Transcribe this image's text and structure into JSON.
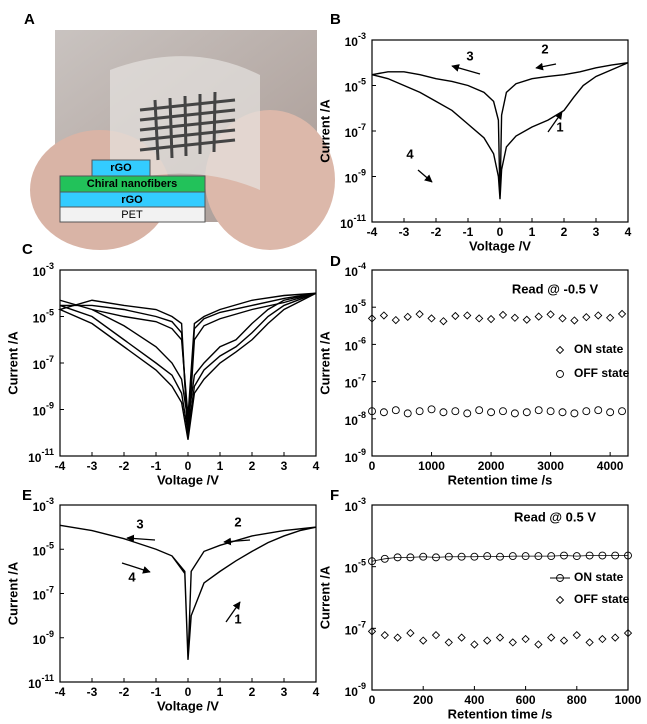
{
  "panel_a": {
    "label": "A",
    "layers": [
      "rGO",
      "Chiral nanofibers",
      "rGO",
      "PET"
    ]
  },
  "chart_data": [
    {
      "type": "line",
      "panel": "B",
      "xlabel": "Voltage /V",
      "ylabel": "Current /A",
      "log_y": true,
      "xlim": [
        -4,
        4
      ],
      "xticks": [
        -4,
        -3,
        -2,
        -1,
        0,
        1,
        2,
        3,
        4
      ],
      "ylim": [
        1e-11,
        0.001
      ],
      "yticks": [
        {
          "value": 0.001,
          "label": "10",
          "sup": "-3"
        },
        {
          "value": 1e-05,
          "label": "10",
          "sup": "-5"
        },
        {
          "value": 1e-07,
          "label": "10",
          "sup": "-7"
        },
        {
          "value": 1e-09,
          "label": "10",
          "sup": "-9"
        },
        {
          "value": 1e-11,
          "label": "10",
          "sup": "-11"
        }
      ],
      "annotations": [
        "3",
        "2",
        "4",
        "1"
      ],
      "x": [
        0,
        0.05,
        0.2,
        0.5,
        1,
        1.5,
        2,
        2.3,
        2.6,
        3,
        3.5,
        4,
        3.5,
        3,
        2.5,
        2,
        1.5,
        1,
        0.5,
        0.2,
        0.05,
        0,
        -0.05,
        -0.2,
        -0.5,
        -1,
        -1.5,
        -2,
        -2.5,
        -3,
        -3.5,
        -4,
        -3.5,
        -3,
        -2.5,
        -2,
        -1.5,
        -1,
        -0.5,
        -0.2,
        -0.05,
        0
      ],
      "series": [
        {
          "color": "#000000",
          "values": [
            1e-10,
            2e-09,
            2e-08,
            6e-08,
            1.5e-07,
            3e-07,
            8e-07,
            3e-06,
            1e-05,
            2.5e-05,
            5e-05,
            0.0001,
            8e-05,
            6e-05,
            4e-05,
            3e-05,
            2.5e-05,
            2e-05,
            1.2e-05,
            5e-06,
            5e-07,
            1e-10,
            3e-07,
            2e-06,
            5e-06,
            1e-05,
            1.5e-05,
            2e-05,
            3e-05,
            4e-05,
            4e-05,
            3e-05,
            2e-05,
            1e-05,
            5e-06,
            2e-06,
            8e-07,
            2e-07,
            5e-08,
            1e-08,
            1e-09,
            1e-10
          ]
        }
      ]
    },
    {
      "type": "line",
      "panel": "C",
      "xlabel": "Voltage /V",
      "ylabel": "Current /A",
      "log_y": true,
      "xlim": [
        -4,
        4
      ],
      "xticks": [
        -4,
        -3,
        -2,
        -1,
        0,
        1,
        2,
        3,
        4
      ],
      "ylim": [
        1e-11,
        0.001
      ],
      "yticks": [
        {
          "value": 0.001,
          "label": "10",
          "sup": "-3"
        },
        {
          "value": 1e-05,
          "label": "10",
          "sup": "-5"
        },
        {
          "value": 1e-07,
          "label": "10",
          "sup": "-7"
        },
        {
          "value": 1e-09,
          "label": "10",
          "sup": "-9"
        },
        {
          "value": 1e-11,
          "label": "10",
          "sup": "-11"
        }
      ],
      "x": [
        0,
        0.2,
        0.5,
        1,
        1.5,
        2,
        2.5,
        3,
        4,
        3,
        2,
        1,
        0.5,
        0.2,
        0,
        -0.2,
        -0.5,
        -1,
        -2,
        -3,
        -4,
        -3,
        -2,
        -1,
        -0.5,
        -0.2,
        0
      ],
      "series": [
        {
          "color": "#000000",
          "values": [
            1e-10,
            1e-08,
            5e-08,
            2e-07,
            5e-07,
            2e-06,
            1e-05,
            3e-05,
            0.0001,
            6e-05,
            3e-05,
            1.5e-05,
            8e-06,
            3e-06,
            1e-10,
            2e-06,
            6e-06,
            1e-05,
            2e-05,
            3e-05,
            3e-05,
            1e-05,
            1e-06,
            1e-07,
            3e-08,
            5e-09,
            1e-10
          ]
        },
        {
          "color": "#000000",
          "values": [
            3e-10,
            3e-08,
            1e-07,
            5e-07,
            1e-06,
            5e-06,
            2e-05,
            5e-05,
            0.0001,
            8e-05,
            5e-05,
            2e-05,
            1e-05,
            5e-06,
            5e-10,
            1e-06,
            3e-06,
            6e-06,
            1e-05,
            2e-05,
            5e-05,
            2e-05,
            4e-06,
            5e-07,
            1e-07,
            2e-08,
            3e-10
          ]
        },
        {
          "color": "#000000",
          "values": [
            5e-11,
            5e-09,
            2e-08,
            1e-07,
            3e-07,
            1e-06,
            5e-06,
            2e-05,
            0.0001,
            4e-05,
            2e-05,
            8e-06,
            4e-06,
            1e-06,
            5e-11,
            5e-06,
            1e-05,
            2e-05,
            3e-05,
            5e-05,
            2e-05,
            5e-06,
            5e-07,
            5e-08,
            1e-08,
            2e-09,
            5e-11
          ]
        }
      ]
    },
    {
      "type": "scatter",
      "panel": "D",
      "xlabel": "Retention time /s",
      "ylabel": "Current /A",
      "log_y": true,
      "xlim": [
        0,
        4300
      ],
      "xticks": [
        0,
        1000,
        2000,
        3000,
        4000
      ],
      "ylim": [
        1e-09,
        0.0001
      ],
      "yticks": [
        {
          "value": 0.0001,
          "label": "10",
          "sup": "-4"
        },
        {
          "value": 1e-05,
          "label": "10",
          "sup": "-5"
        },
        {
          "value": 1e-06,
          "label": "10",
          "sup": "-6"
        },
        {
          "value": 1e-07,
          "label": "10",
          "sup": "-7"
        },
        {
          "value": 1e-08,
          "label": "10",
          "sup": "-8"
        },
        {
          "value": 1e-09,
          "label": "10",
          "sup": "-9"
        }
      ],
      "annotations": [
        "Read @ -0.5 V"
      ],
      "x": [
        0,
        200,
        400,
        600,
        800,
        1000,
        1200,
        1400,
        1600,
        1800,
        2000,
        2200,
        2400,
        2600,
        2800,
        3000,
        3200,
        3400,
        3600,
        3800,
        4000,
        4200
      ],
      "series": [
        {
          "name": "ON state",
          "marker": "diamond",
          "color": "#000000",
          "values": [
            5e-06,
            6e-06,
            4.5e-06,
            5.5e-06,
            6.5e-06,
            5e-06,
            4.2e-06,
            5.8e-06,
            6e-06,
            5e-06,
            4.8e-06,
            6.2e-06,
            5.2e-06,
            4.6e-06,
            5.6e-06,
            6.4e-06,
            5e-06,
            4.4e-06,
            5.4e-06,
            6e-06,
            5.2e-06,
            6.6e-06
          ]
        },
        {
          "name": "OFF state",
          "marker": "circle",
          "color": "#000000",
          "values": [
            1.6e-08,
            1.5e-08,
            1.7e-08,
            1.4e-08,
            1.6e-08,
            1.8e-08,
            1.5e-08,
            1.6e-08,
            1.4e-08,
            1.7e-08,
            1.5e-08,
            1.6e-08,
            1.4e-08,
            1.5e-08,
            1.7e-08,
            1.6e-08,
            1.5e-08,
            1.4e-08,
            1.6e-08,
            1.7e-08,
            1.5e-08,
            1.6e-08
          ]
        }
      ]
    },
    {
      "type": "line",
      "panel": "E",
      "xlabel": "Voltage /V",
      "ylabel": "Current /A",
      "log_y": true,
      "xlim": [
        -4,
        4
      ],
      "xticks": [
        -4,
        -3,
        -2,
        -1,
        0,
        1,
        2,
        3,
        4
      ],
      "ylim": [
        1e-11,
        0.001
      ],
      "yticks": [
        {
          "value": 0.001,
          "label": "10",
          "sup": "-3"
        },
        {
          "value": 1e-05,
          "label": "10",
          "sup": "-5"
        },
        {
          "value": 1e-07,
          "label": "10",
          "sup": "-7"
        },
        {
          "value": 1e-09,
          "label": "10",
          "sup": "-9"
        },
        {
          "value": 1e-11,
          "label": "10",
          "sup": "-11"
        }
      ],
      "annotations": [
        "3",
        "2",
        "4",
        "1"
      ],
      "x": [
        0,
        0.1,
        0.5,
        1,
        1.5,
        2,
        2.5,
        3,
        3.5,
        4,
        3,
        2,
        1,
        0.5,
        0.1,
        0,
        -0.1,
        -0.5,
        -1,
        -2,
        -3,
        -4,
        -3,
        -2,
        -1,
        -0.5,
        -0.1,
        0
      ],
      "series": [
        {
          "color": "#000000",
          "values": [
            1e-10,
            1e-08,
            3e-07,
            1e-06,
            3e-06,
            8e-06,
            2e-05,
            4e-05,
            7e-05,
            0.0001,
            7e-05,
            4e-05,
            1.5e-05,
            8e-06,
            1e-06,
            1e-10,
            1e-06,
            5e-06,
            1e-05,
            3e-05,
            7e-05,
            0.00012,
            7e-05,
            3e-05,
            1e-05,
            5e-06,
            8e-07,
            1e-10
          ]
        }
      ]
    },
    {
      "type": "scatter",
      "panel": "F",
      "xlabel": "Retention time /s",
      "ylabel": "Current /A",
      "log_y": true,
      "xlim": [
        0,
        1000
      ],
      "xticks": [
        0,
        200,
        400,
        600,
        800,
        1000
      ],
      "ylim": [
        1e-09,
        0.001
      ],
      "yticks": [
        {
          "value": 0.001,
          "label": "10",
          "sup": "-3"
        },
        {
          "value": 1e-05,
          "label": "10",
          "sup": "-5"
        },
        {
          "value": 1e-07,
          "label": "10",
          "sup": "-7"
        },
        {
          "value": 1e-09,
          "label": "10",
          "sup": "-9"
        }
      ],
      "annotations": [
        "Read @ 0.5 V"
      ],
      "x": [
        0,
        50,
        100,
        150,
        200,
        250,
        300,
        350,
        400,
        450,
        500,
        550,
        600,
        650,
        700,
        750,
        800,
        850,
        900,
        950,
        1000
      ],
      "series": [
        {
          "name": "ON state",
          "marker": "circle",
          "line": true,
          "color": "#000000",
          "values": [
            1.5e-05,
            1.8e-05,
            2e-05,
            2e-05,
            2.1e-05,
            2e-05,
            2.1e-05,
            2.1e-05,
            2.1e-05,
            2.2e-05,
            2.1e-05,
            2.2e-05,
            2.2e-05,
            2.2e-05,
            2.2e-05,
            2.3e-05,
            2.2e-05,
            2.3e-05,
            2.3e-05,
            2.3e-05,
            2.3e-05
          ]
        },
        {
          "name": "OFF state",
          "marker": "diamond",
          "color": "#000000",
          "values": [
            8e-08,
            6e-08,
            5e-08,
            7e-08,
            4e-08,
            6e-08,
            3.5e-08,
            5e-08,
            3e-08,
            4e-08,
            5e-08,
            3.5e-08,
            4.5e-08,
            3e-08,
            5e-08,
            4e-08,
            6e-08,
            3.5e-08,
            4.5e-08,
            5e-08,
            7e-08
          ]
        }
      ]
    }
  ]
}
